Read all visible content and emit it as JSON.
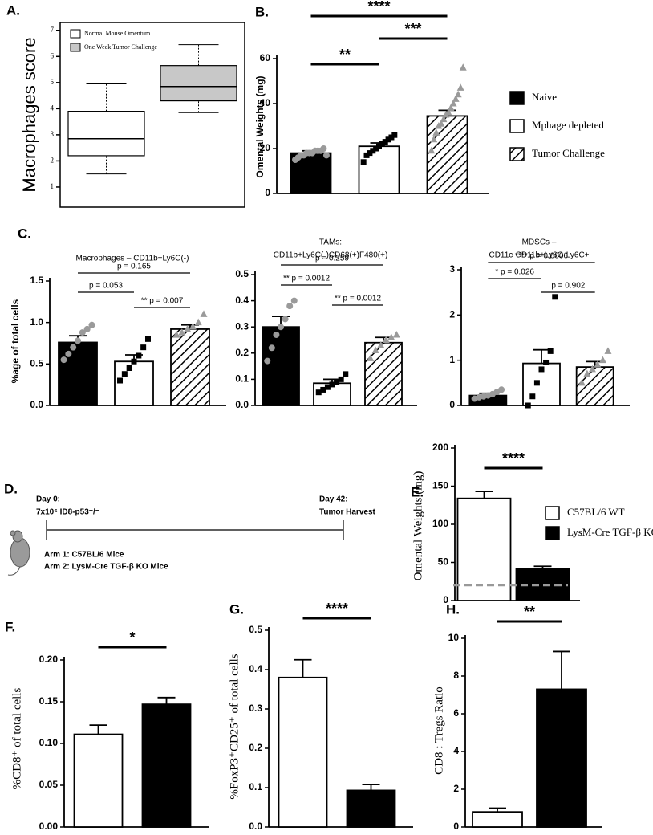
{
  "chart_data": [
    {
      "type": "box",
      "panel": "A.",
      "ylabel": "Macrophages score",
      "ylim": [
        0.23,
        7.3
      ],
      "yticks": [
        1,
        2,
        3,
        4,
        5,
        6,
        7
      ],
      "series": [
        {
          "name": "Normal Mouse Omentum",
          "color": "#ffffff",
          "low": 1.5,
          "q1": 2.2,
          "median": 2.85,
          "q3": 3.9,
          "high": 4.95
        },
        {
          "name": "One Week Tumor Challenge",
          "color": "#c8c8c8",
          "low": 3.85,
          "q1": 4.3,
          "median": 4.85,
          "q3": 5.65,
          "high": 6.45
        }
      ]
    },
    {
      "type": "bar",
      "panel": "B.",
      "ylabel": "Omental Weights  (mg)",
      "ylim": [
        0,
        60
      ],
      "yticks": [
        0,
        20,
        40,
        60
      ],
      "annotations": [
        "**",
        "***",
        "****"
      ],
      "series": [
        {
          "name": "Naive",
          "color": "#000000",
          "hatch": false,
          "values": [
            18
          ],
          "errors": [
            1
          ],
          "point_color": "#9a9a9a",
          "point_shape": "circle",
          "points": [
            15,
            16,
            17,
            17,
            18,
            18,
            18,
            19,
            19,
            19,
            20,
            17
          ]
        },
        {
          "name": "Mphage depleted",
          "color": "#ffffff",
          "hatch": false,
          "values": [
            21
          ],
          "errors": [
            1.5
          ],
          "point_color": "#000000",
          "point_shape": "square",
          "points": [
            14,
            17,
            18,
            19,
            20,
            21,
            22,
            23,
            24,
            25,
            26
          ]
        },
        {
          "name": "Tumor Challenge",
          "color": "#ffffff",
          "hatch": true,
          "values": [
            34.5
          ],
          "errors": [
            2.5
          ],
          "point_color": "#9a9a9a",
          "point_shape": "triangle",
          "points": [
            19,
            24,
            27,
            30,
            31,
            33,
            35,
            36,
            38,
            40,
            42,
            44,
            47,
            56
          ]
        }
      ]
    },
    {
      "type": "bar",
      "panel": "C.",
      "ylabel": "%age of total cells",
      "title": [
        "Macrophages – CD11b+Ly6C(-)"
      ],
      "ylim": [
        0,
        1.5
      ],
      "yticks": [
        {
          "value": 0,
          "label": "0.0"
        },
        0.5,
        {
          "value": 1,
          "label": "1.0"
        },
        1.5
      ],
      "annotations": [
        "p = 0.165",
        "p = 0.053",
        "** p = 0.007"
      ],
      "series": [
        {
          "color": "#000000",
          "hatch": false,
          "values": [
            0.76
          ],
          "errors": [
            0.08
          ],
          "point_color": "#9a9a9a",
          "point_shape": "circle",
          "points": [
            0.55,
            0.62,
            0.7,
            0.78,
            0.88,
            0.92,
            0.97
          ]
        },
        {
          "color": "#ffffff",
          "hatch": false,
          "values": [
            0.53
          ],
          "errors": [
            0.08
          ],
          "point_color": "#000000",
          "point_shape": "square",
          "points": [
            0.3,
            0.38,
            0.45,
            0.53,
            0.6,
            0.7,
            0.8
          ]
        },
        {
          "color": "#ffffff",
          "hatch": true,
          "values": [
            0.92
          ],
          "errors": [
            0.05
          ],
          "point_color": "#9a9a9a",
          "point_shape": "triangle",
          "points": [
            0.85,
            0.88,
            0.92,
            0.95,
            1.0,
            1.1
          ]
        }
      ]
    },
    {
      "type": "bar",
      "title": [
        "TAMs:",
        "CD11b+Ly6C(-)CD68(+)F480(+)"
      ],
      "ylim": [
        0,
        0.5
      ],
      "yticks": [
        {
          "value": 0,
          "label": "0.0"
        },
        0.1,
        0.2,
        0.3,
        0.4,
        0.5
      ],
      "annotations": [
        "p = 0.259",
        "** p = 0.0012",
        "** p = 0.0012"
      ],
      "series": [
        {
          "color": "#000000",
          "hatch": false,
          "values": [
            0.3
          ],
          "errors": [
            0.04
          ],
          "point_color": "#9a9a9a",
          "point_shape": "circle",
          "points": [
            0.17,
            0.22,
            0.27,
            0.3,
            0.33,
            0.38,
            0.4
          ]
        },
        {
          "color": "#ffffff",
          "hatch": false,
          "values": [
            0.085
          ],
          "errors": [
            0.015
          ],
          "point_color": "#000000",
          "point_shape": "square",
          "points": [
            0.05,
            0.06,
            0.07,
            0.08,
            0.09,
            0.1,
            0.12
          ]
        },
        {
          "color": "#ffffff",
          "hatch": true,
          "values": [
            0.24
          ],
          "errors": [
            0.02
          ],
          "point_color": "#9a9a9a",
          "point_shape": "triangle",
          "points": [
            0.18,
            0.21,
            0.23,
            0.25,
            0.26,
            0.27
          ]
        }
      ]
    },
    {
      "type": "bar",
      "title": [
        "MDSCs –",
        "CD11c-CD11b+Ly6G-Ly6C+"
      ],
      "ylim": [
        0,
        3
      ],
      "yticks": [
        0,
        1,
        2,
        3
      ],
      "annotations": [
        "**** p = 0.0006",
        "* p = 0.026",
        "p = 0.902"
      ],
      "series": [
        {
          "color": "#000000",
          "hatch": false,
          "values": [
            0.22
          ],
          "errors": [
            0.05
          ],
          "point_color": "#9a9a9a",
          "point_shape": "circle",
          "points": [
            0.15,
            0.18,
            0.2,
            0.22,
            0.25,
            0.3,
            0.35
          ]
        },
        {
          "color": "#ffffff",
          "hatch": false,
          "values": [
            0.93
          ],
          "errors": [
            0.3
          ],
          "point_color": "#000000",
          "point_shape": "square",
          "points": [
            0,
            0.2,
            0.5,
            0.8,
            0.95,
            1.2,
            2.4
          ]
        },
        {
          "color": "#ffffff",
          "hatch": true,
          "values": [
            0.85
          ],
          "errors": [
            0.12
          ],
          "point_color": "#9a9a9a",
          "point_shape": "triangle",
          "points": [
            0.5,
            0.7,
            0.8,
            0.9,
            1.0,
            1.2
          ]
        }
      ]
    },
    {
      "type": "bar",
      "panel": "E.",
      "ylabel": "Omental Weights (mg)",
      "ylim": [
        0,
        200
      ],
      "yticks": [
        0,
        50,
        100,
        150,
        200
      ],
      "annotations": [
        "****"
      ],
      "hline": 20,
      "hline_color": "#999999",
      "series": [
        {
          "name": "C57BL/6 WT",
          "color": "#ffffff",
          "hatch": false,
          "values": [
            134
          ],
          "errors": [
            9
          ]
        },
        {
          "name": "LysM-Cre TGF-β KO",
          "color": "#000000",
          "hatch": false,
          "values": [
            42
          ],
          "errors": [
            3
          ]
        }
      ]
    },
    {
      "type": "bar",
      "panel": "F.",
      "ylabel": "%CD8⁺ of total cells",
      "ylim": [
        0,
        0.2
      ],
      "yticks": [
        {
          "value": 0,
          "label": "0.00"
        },
        0.05,
        {
          "value": 0.1,
          "label": "0.10"
        },
        0.15,
        {
          "value": 0.2,
          "label": "0.20"
        }
      ],
      "annotations": [
        "*"
      ],
      "series": [
        {
          "color": "#ffffff",
          "hatch": false,
          "values": [
            0.111
          ],
          "errors": [
            0.011
          ]
        },
        {
          "color": "#000000",
          "hatch": false,
          "values": [
            0.147
          ],
          "errors": [
            0.008
          ]
        }
      ]
    },
    {
      "type": "bar",
      "panel": "G.",
      "ylabel": "%FoxP3⁺CD25⁺ of total cells",
      "ylim": [
        0,
        0.5
      ],
      "yticks": [
        {
          "value": 0,
          "label": "0.0"
        },
        0.1,
        0.2,
        0.3,
        0.4,
        0.5
      ],
      "annotations": [
        "****"
      ],
      "series": [
        {
          "color": "#ffffff",
          "hatch": false,
          "values": [
            0.38
          ],
          "errors": [
            0.045
          ]
        },
        {
          "color": "#000000",
          "hatch": false,
          "values": [
            0.093
          ],
          "errors": [
            0.015
          ]
        }
      ]
    },
    {
      "type": "bar",
      "panel": "H.",
      "ylabel": "CD8 : Tregs Ratio",
      "ylim": [
        0,
        10
      ],
      "yticks": [
        0,
        2,
        4,
        6,
        8,
        10
      ],
      "annotations": [
        "**"
      ],
      "series": [
        {
          "color": "#ffffff",
          "hatch": false,
          "values": [
            0.8
          ],
          "errors": [
            0.2
          ]
        },
        {
          "color": "#000000",
          "hatch": false,
          "values": [
            7.3
          ],
          "errors": [
            2
          ]
        }
      ]
    }
  ],
  "timeline": {
    "panel": "D.",
    "start_day": "Day 0:",
    "start_event": "7x10⁶ ID8-p53⁻/⁻",
    "end_day": "Day 42:",
    "end_event": "Tumor Harvest",
    "arms": [
      "Arm 1: C57BL/6 Mice",
      "Arm 2: LysM-Cre TGF-β KO Mice"
    ]
  }
}
